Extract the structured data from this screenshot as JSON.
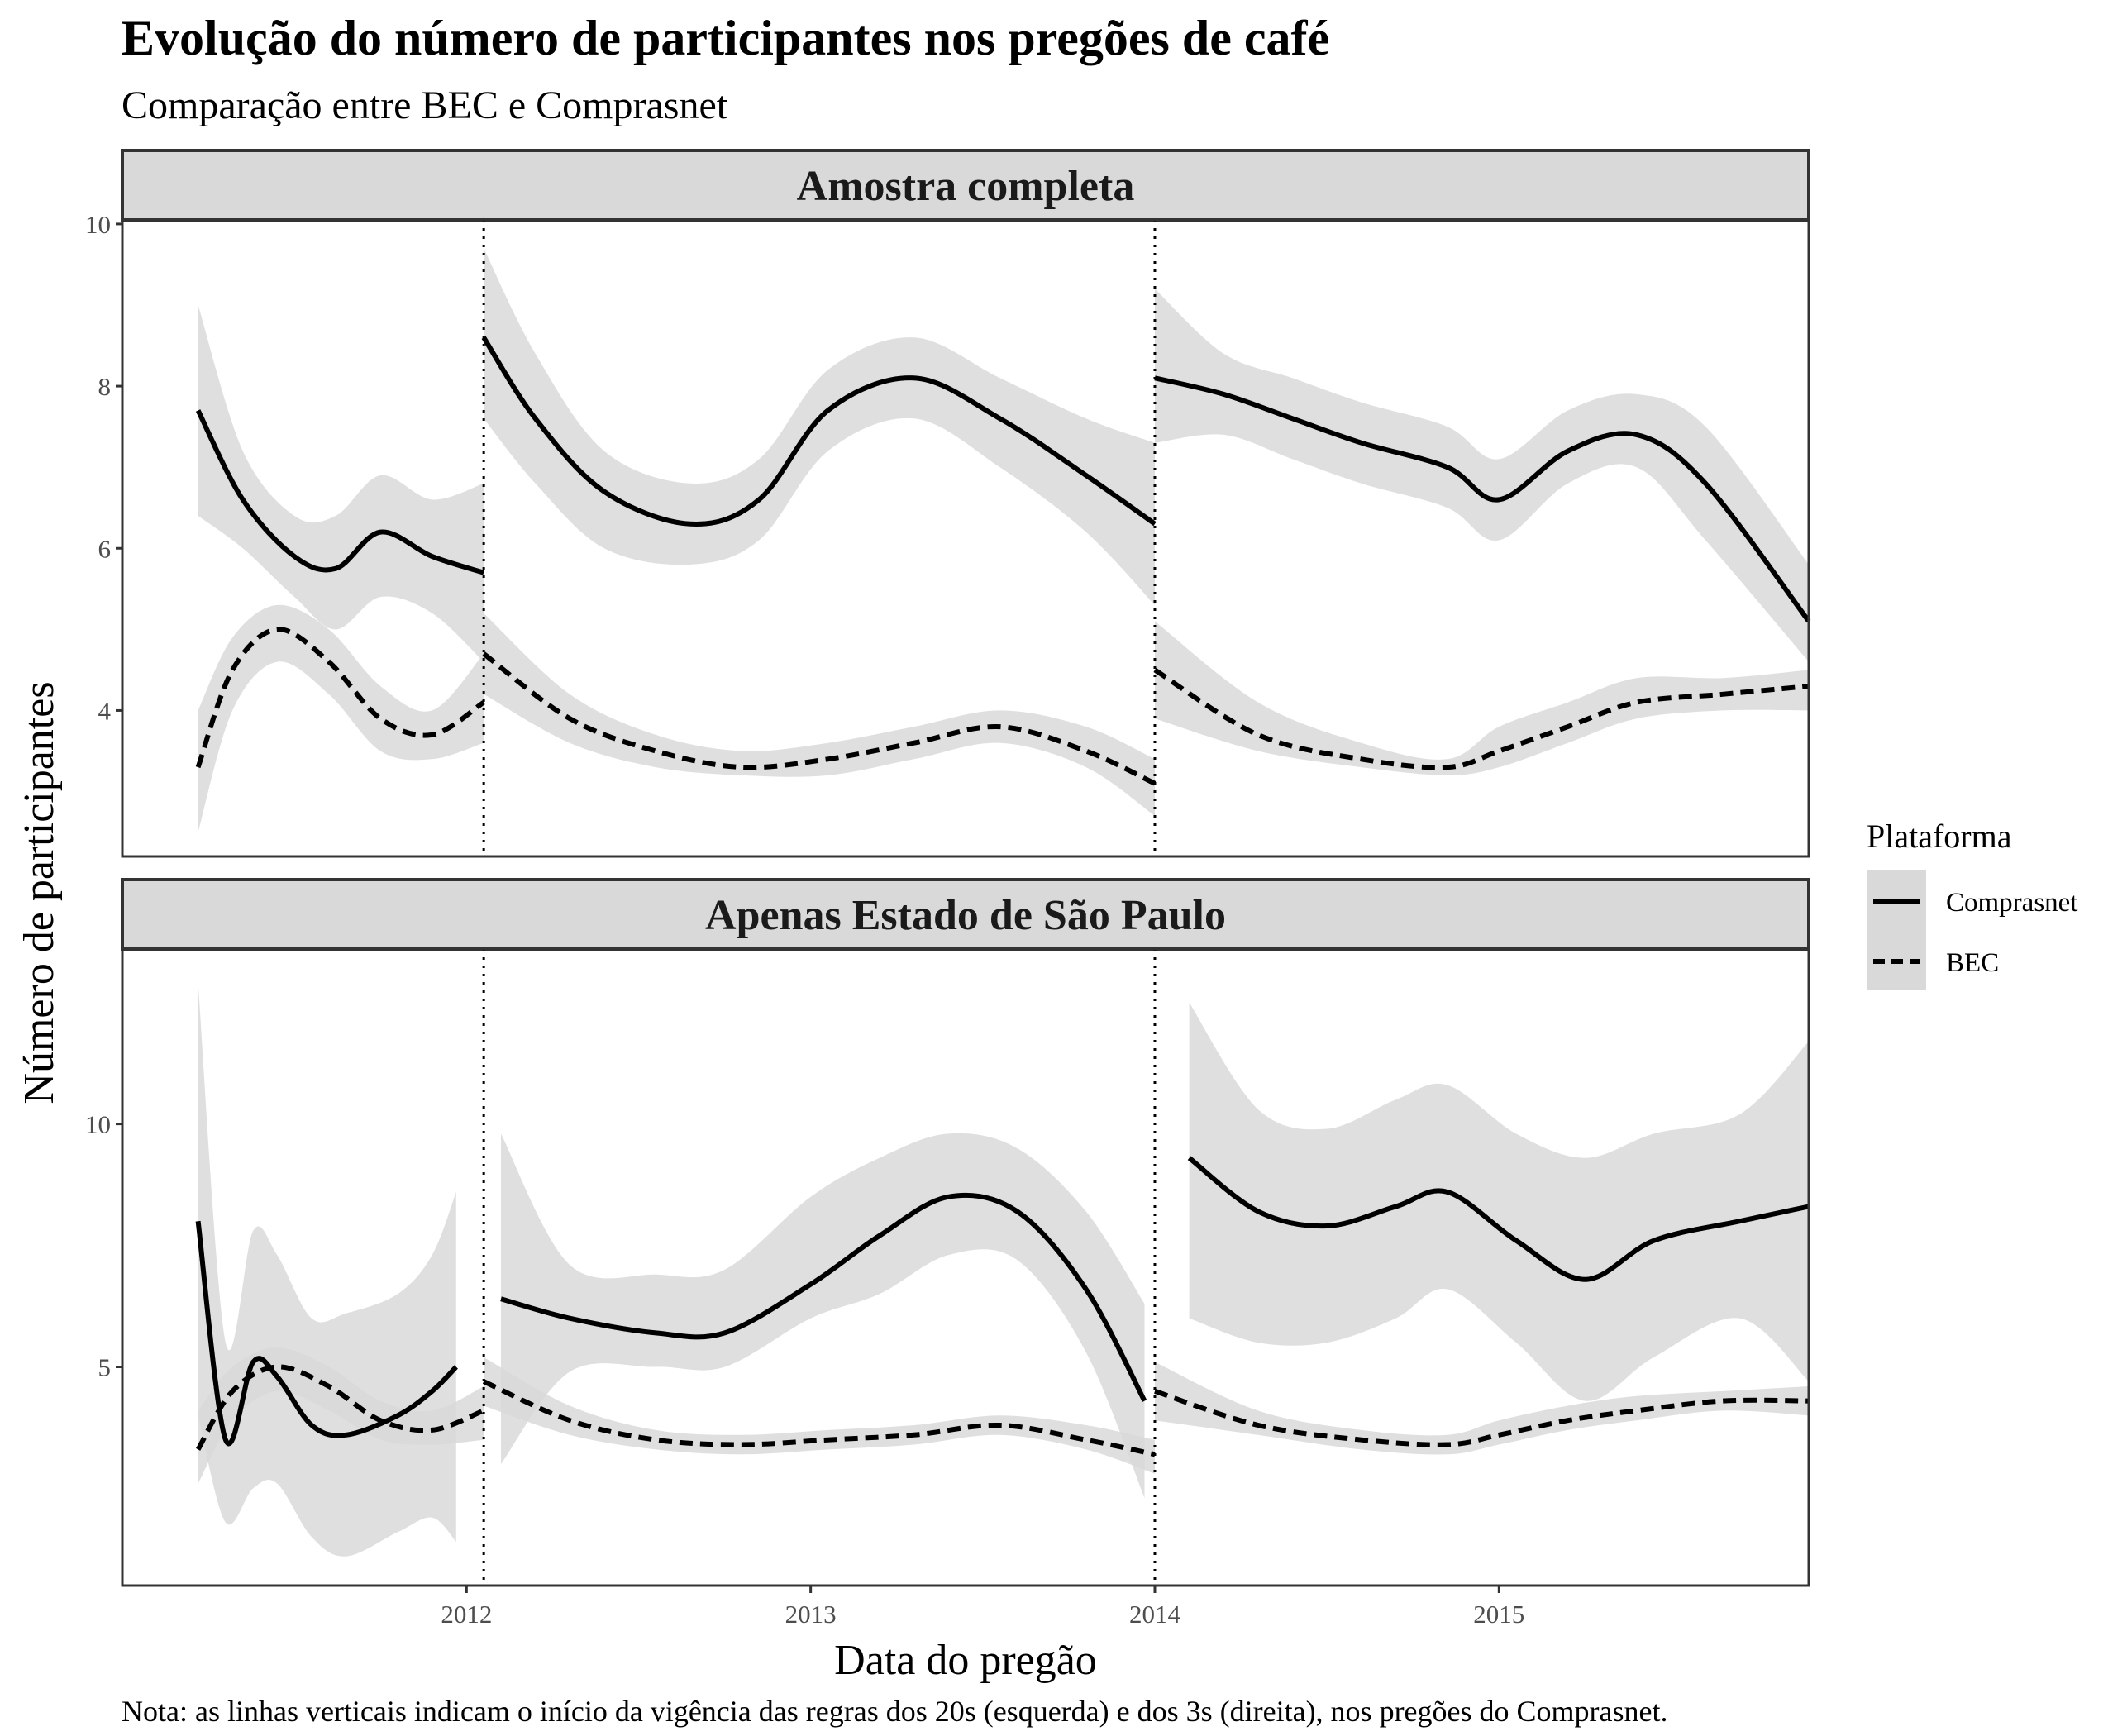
{
  "chart_data": {
    "type": "line",
    "title": "Evolução do número de participantes nos pregões de café",
    "subtitle": "Comparação entre BEC e Comprasnet",
    "xlabel": "Data do pregão",
    "ylabel": "Número de participantes",
    "caption": "Nota: as linhas verticais indicam o início da vigência das regras dos 20s (esquerda) e dos 3s (direita), nos pregões do Comprasnet.",
    "x_range": [
      2011.0,
      2015.9
    ],
    "x_ticks": [
      {
        "value": 2012,
        "label": "2012"
      },
      {
        "value": 2013,
        "label": "2013"
      },
      {
        "value": 2014,
        "label": "2014"
      },
      {
        "value": 2015,
        "label": "2015"
      }
    ],
    "vlines": [
      2012.05,
      2014.0
    ],
    "legend": {
      "title": "Plataforma",
      "placement": "right",
      "items": [
        {
          "label": "Comprasnet",
          "linetype": "solid"
        },
        {
          "label": "BEC",
          "linetype": "dashed"
        }
      ]
    },
    "colors": {
      "line": "#000000",
      "ribbon": "#d9d9d9",
      "strip": "#d9d9d9",
      "frame": "#333333"
    },
    "panels": [
      {
        "strip": "Amostra completa",
        "ylim": [
          2.2,
          10.05
        ],
        "y_ticks": [
          {
            "value": 4,
            "label": "4"
          },
          {
            "value": 6,
            "label": "6"
          },
          {
            "value": 8,
            "label": "8"
          },
          {
            "value": 10,
            "label": "10"
          }
        ],
        "series": [
          {
            "name": "Comprasnet",
            "segments": [
              {
                "x": [
                  2011.22,
                  2011.35,
                  2011.5,
                  2011.62,
                  2011.75,
                  2011.9,
                  2012.05
                ],
                "y": [
                  7.7,
                  6.6,
                  5.9,
                  5.75,
                  6.2,
                  5.9,
                  5.7
                ],
                "lower": [
                  6.4,
                  6.0,
                  5.4,
                  5.0,
                  5.4,
                  5.2,
                  4.6
                ],
                "upper": [
                  9.0,
                  7.2,
                  6.4,
                  6.4,
                  6.9,
                  6.6,
                  6.8
                ]
              },
              {
                "x": [
                  2012.05,
                  2012.2,
                  2012.4,
                  2012.65,
                  2012.85,
                  2013.05,
                  2013.3,
                  2013.55,
                  2013.8,
                  2014.0
                ],
                "y": [
                  8.6,
                  7.6,
                  6.7,
                  6.3,
                  6.6,
                  7.7,
                  8.1,
                  7.6,
                  6.9,
                  6.3
                ],
                "lower": [
                  7.6,
                  6.8,
                  6.0,
                  5.8,
                  6.1,
                  7.2,
                  7.6,
                  7.0,
                  6.2,
                  5.3
                ],
                "upper": [
                  9.7,
                  8.4,
                  7.2,
                  6.8,
                  7.1,
                  8.2,
                  8.6,
                  8.1,
                  7.6,
                  7.3
                ]
              },
              {
                "x": [
                  2014.0,
                  2014.2,
                  2014.4,
                  2014.6,
                  2014.85,
                  2015.0,
                  2015.2,
                  2015.4,
                  2015.6,
                  2015.9
                ],
                "y": [
                  8.1,
                  7.9,
                  7.6,
                  7.3,
                  7.0,
                  6.6,
                  7.2,
                  7.4,
                  6.8,
                  5.1
                ],
                "lower": [
                  7.3,
                  7.4,
                  7.1,
                  6.8,
                  6.5,
                  6.1,
                  6.8,
                  7.0,
                  6.1,
                  4.6
                ],
                "upper": [
                  9.2,
                  8.4,
                  8.1,
                  7.8,
                  7.5,
                  7.1,
                  7.7,
                  7.9,
                  7.5,
                  5.8
                ]
              }
            ]
          },
          {
            "name": "BEC",
            "segments": [
              {
                "x": [
                  2011.22,
                  2011.32,
                  2011.45,
                  2011.6,
                  2011.75,
                  2011.9,
                  2012.05
                ],
                "y": [
                  3.3,
                  4.5,
                  5.0,
                  4.6,
                  3.9,
                  3.7,
                  4.1
                ],
                "lower": [
                  2.5,
                  4.0,
                  4.6,
                  4.2,
                  3.5,
                  3.4,
                  3.6
                ],
                "upper": [
                  4.0,
                  4.9,
                  5.3,
                  5.0,
                  4.3,
                  4.0,
                  4.7
                ]
              },
              {
                "x": [
                  2012.05,
                  2012.3,
                  2012.55,
                  2012.8,
                  2013.05,
                  2013.3,
                  2013.55,
                  2013.8,
                  2014.0
                ],
                "y": [
                  4.7,
                  3.9,
                  3.5,
                  3.3,
                  3.4,
                  3.6,
                  3.8,
                  3.5,
                  3.1
                ],
                "lower": [
                  4.2,
                  3.6,
                  3.3,
                  3.2,
                  3.2,
                  3.4,
                  3.6,
                  3.3,
                  2.7
                ],
                "upper": [
                  5.2,
                  4.2,
                  3.7,
                  3.5,
                  3.6,
                  3.8,
                  4.0,
                  3.8,
                  3.4
                ]
              },
              {
                "x": [
                  2014.0,
                  2014.3,
                  2014.6,
                  2014.85,
                  2015.0,
                  2015.2,
                  2015.4,
                  2015.65,
                  2015.9
                ],
                "y": [
                  4.5,
                  3.7,
                  3.4,
                  3.3,
                  3.5,
                  3.8,
                  4.1,
                  4.2,
                  4.3
                ],
                "lower": [
                  3.9,
                  3.5,
                  3.3,
                  3.2,
                  3.3,
                  3.6,
                  3.9,
                  4.0,
                  4.0
                ],
                "upper": [
                  5.1,
                  4.1,
                  3.6,
                  3.4,
                  3.8,
                  4.1,
                  4.4,
                  4.4,
                  4.5
                ]
              }
            ]
          }
        ]
      },
      {
        "strip": "Apenas Estado de São Paulo",
        "ylim": [
          0.5,
          13.6
        ],
        "y_ticks": [
          {
            "value": 5,
            "label": "5"
          },
          {
            "value": 10,
            "label": "10"
          }
        ],
        "series": [
          {
            "name": "Comprasnet",
            "segments": [
              {
                "x": [
                  2011.22,
                  2011.3,
                  2011.38,
                  2011.45,
                  2011.55,
                  2011.65,
                  2011.8,
                  2011.9,
                  2011.97
                ],
                "y": [
                  8.0,
                  3.5,
                  5.1,
                  4.8,
                  3.8,
                  3.6,
                  4.0,
                  4.5,
                  5.0
                ],
                "lower": [
                  4.0,
                  1.8,
                  2.5,
                  2.6,
                  1.5,
                  1.1,
                  1.6,
                  1.9,
                  1.4
                ],
                "upper": [
                  12.9,
                  5.5,
                  7.8,
                  7.3,
                  6.0,
                  6.1,
                  6.5,
                  7.3,
                  8.6
                ]
              },
              {
                "x": [
                  2012.1,
                  2012.3,
                  2012.55,
                  2012.75,
                  2013.0,
                  2013.2,
                  2013.4,
                  2013.6,
                  2013.8,
                  2013.97
                ],
                "y": [
                  6.4,
                  6.0,
                  5.7,
                  5.7,
                  6.7,
                  7.7,
                  8.5,
                  8.2,
                  6.6,
                  4.3
                ],
                "lower": [
                  3.0,
                  4.9,
                  5.0,
                  5.0,
                  6.0,
                  6.5,
                  7.3,
                  7.2,
                  5.3,
                  2.3
                ],
                "upper": [
                  9.8,
                  7.1,
                  6.9,
                  7.0,
                  8.5,
                  9.3,
                  9.8,
                  9.5,
                  8.2,
                  6.3
                ]
              },
              {
                "x": [
                  2014.1,
                  2014.3,
                  2014.5,
                  2014.7,
                  2014.85,
                  2015.05,
                  2015.25,
                  2015.45,
                  2015.7,
                  2015.9
                ],
                "y": [
                  9.3,
                  8.2,
                  7.9,
                  8.3,
                  8.6,
                  7.6,
                  6.8,
                  7.6,
                  8.0,
                  8.3
                ],
                "lower": [
                  6.0,
                  5.5,
                  5.5,
                  6.0,
                  6.6,
                  5.5,
                  4.3,
                  5.2,
                  6.0,
                  4.7
                ],
                "upper": [
                  12.5,
                  10.3,
                  9.9,
                  10.5,
                  10.8,
                  9.8,
                  9.3,
                  9.8,
                  10.2,
                  11.7
                ]
              }
            ]
          },
          {
            "name": "BEC",
            "segments": [
              {
                "x": [
                  2011.22,
                  2011.32,
                  2011.45,
                  2011.6,
                  2011.75,
                  2011.9,
                  2012.05
                ],
                "y": [
                  3.3,
                  4.5,
                  5.0,
                  4.6,
                  3.9,
                  3.7,
                  4.1
                ],
                "lower": [
                  2.6,
                  3.9,
                  4.5,
                  4.1,
                  3.5,
                  3.4,
                  3.5
                ],
                "upper": [
                  4.1,
                  5.0,
                  5.4,
                  5.0,
                  4.3,
                  4.1,
                  4.6
                ]
              },
              {
                "x": [
                  2012.05,
                  2012.3,
                  2012.55,
                  2012.8,
                  2013.05,
                  2013.3,
                  2013.55,
                  2013.8,
                  2014.0
                ],
                "y": [
                  4.7,
                  3.9,
                  3.5,
                  3.4,
                  3.5,
                  3.6,
                  3.8,
                  3.5,
                  3.2
                ],
                "lower": [
                  4.2,
                  3.6,
                  3.3,
                  3.2,
                  3.3,
                  3.4,
                  3.6,
                  3.3,
                  2.8
                ],
                "upper": [
                  5.2,
                  4.2,
                  3.7,
                  3.6,
                  3.7,
                  3.8,
                  4.0,
                  3.8,
                  3.5
                ]
              },
              {
                "x": [
                  2014.0,
                  2014.3,
                  2014.6,
                  2014.85,
                  2015.0,
                  2015.2,
                  2015.4,
                  2015.65,
                  2015.9
                ],
                "y": [
                  4.5,
                  3.8,
                  3.5,
                  3.4,
                  3.6,
                  3.9,
                  4.1,
                  4.3,
                  4.3
                ],
                "lower": [
                  3.9,
                  3.6,
                  3.3,
                  3.2,
                  3.4,
                  3.7,
                  3.9,
                  4.1,
                  4.0
                ],
                "upper": [
                  5.1,
                  4.1,
                  3.7,
                  3.6,
                  3.9,
                  4.2,
                  4.4,
                  4.5,
                  4.6
                ]
              }
            ]
          }
        ]
      }
    ]
  }
}
